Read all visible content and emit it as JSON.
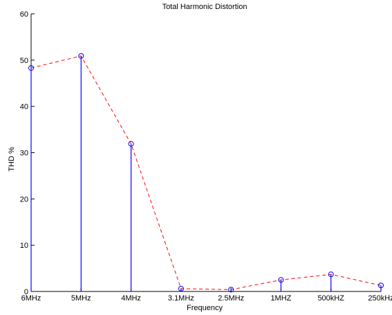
{
  "chart_data": {
    "type": "line",
    "title": "Total Harmonic Distortion",
    "xlabel": "Frequency",
    "ylabel": "THD %",
    "categories": [
      "6MHz",
      "5MHz",
      "4MHz",
      "3.1MHz",
      "2.5MHz",
      "1MHZ",
      "500kHZ",
      "250kHz"
    ],
    "ylim": [
      0,
      60
    ],
    "yticks": [
      0,
      10,
      20,
      30,
      40,
      50,
      60
    ],
    "grid": false,
    "series": [
      {
        "style": "stem",
        "color": "#0000ff",
        "marker": "circle",
        "values": [
          48.3,
          50.9,
          31.9,
          0.6,
          0.4,
          2.5,
          3.7,
          1.3
        ]
      },
      {
        "style": "dashed-line",
        "color": "#ff0000",
        "values": [
          48.3,
          50.9,
          31.9,
          0.6,
          0.4,
          2.5,
          3.7,
          1.3
        ]
      }
    ]
  }
}
